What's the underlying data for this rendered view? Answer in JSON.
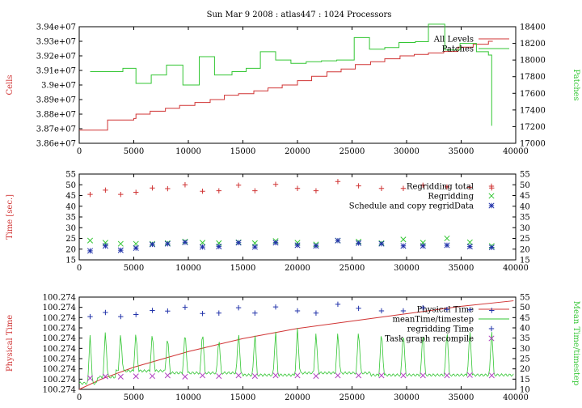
{
  "title": "Sun Mar 9 2008 : atlas447 : 1024 Processors",
  "colors": {
    "red": "#d03434",
    "green": "#33c633",
    "blue": "#2233aa",
    "purple": "#b040c0",
    "axis": "#000000"
  },
  "chart_data": [
    {
      "type": "line",
      "ylabel": "Cells",
      "y2label": "Patches",
      "xlim": [
        0,
        40000
      ],
      "ylim": [
        38600000,
        39400000
      ],
      "y2lim": [
        17000,
        18400
      ],
      "xticks": [
        "0",
        "5000",
        "10000",
        "15000",
        "20000",
        "25000",
        "30000",
        "35000",
        "40000"
      ],
      "yticks": [
        "3.86e+07",
        "3.87e+07",
        "3.88e+07",
        "3.89e+07",
        "3.9e+07",
        "3.91e+07",
        "3.92e+07",
        "3.93e+07",
        "3.94e+07"
      ],
      "y2ticks": [
        "17000",
        "17200",
        "17400",
        "17600",
        "17800",
        "18000",
        "18200",
        "18400"
      ],
      "legend": "top-right",
      "series": [
        {
          "name": "All Levels",
          "axis": "left",
          "step": true,
          "x": [
            0,
            1300,
            2600,
            5000,
            5200,
            6500,
            7900,
            9200,
            10600,
            12000,
            13300,
            14600,
            16000,
            17300,
            18600,
            20000,
            21300,
            22700,
            24000,
            25300,
            26700,
            28000,
            29400,
            30700,
            32000,
            33400,
            34700,
            36100,
            37500,
            37900
          ],
          "y": [
            38690000,
            38690000,
            38760000,
            38770000,
            38800000,
            38820000,
            38840000,
            38860000,
            38880000,
            38900000,
            38930000,
            38940000,
            38960000,
            38980000,
            39000000,
            39030000,
            39060000,
            39090000,
            39110000,
            39140000,
            39160000,
            39180000,
            39200000,
            39210000,
            39220000,
            39230000,
            39260000,
            39280000,
            39300000,
            39300000
          ]
        },
        {
          "name": "Patches",
          "axis": "right",
          "step": true,
          "x": [
            1000,
            2500,
            4000,
            5200,
            6600,
            8000,
            9500,
            11000,
            12400,
            14000,
            15300,
            16600,
            18000,
            19400,
            20800,
            22200,
            23600,
            25200,
            26600,
            28000,
            29300,
            30800,
            32000,
            33500,
            34900,
            36400,
            37500,
            37800
          ],
          "y": [
            17860,
            17860,
            17900,
            17720,
            17820,
            17940,
            17700,
            18040,
            17820,
            17860,
            17900,
            18100,
            18000,
            17960,
            17980,
            17990,
            18000,
            18270,
            18130,
            18150,
            18210,
            18220,
            18430,
            18120,
            18200,
            18100,
            18060,
            17210
          ]
        }
      ]
    },
    {
      "type": "scatter",
      "ylabel": "Time [sec.]",
      "xlim": [
        0,
        40000
      ],
      "ylim": [
        15,
        55
      ],
      "y2lim": [
        15,
        55
      ],
      "xticks": [
        "0",
        "5000",
        "10000",
        "15000",
        "20000",
        "25000",
        "30000",
        "35000",
        "40000"
      ],
      "yticks": [
        "15",
        "20",
        "25",
        "30",
        "35",
        "40",
        "45",
        "50",
        "55"
      ],
      "y2ticks": [
        "15",
        "20",
        "25",
        "30",
        "35",
        "40",
        "45",
        "50",
        "55"
      ],
      "legend": "top-right",
      "series": [
        {
          "name": "Regridding total",
          "marker": "plus",
          "x": [
            1000,
            2400,
            3800,
            5200,
            6700,
            8100,
            9700,
            11300,
            12800,
            14600,
            16100,
            18000,
            20000,
            21700,
            23700,
            25600,
            27700,
            29700,
            31500,
            33700,
            35800,
            37800
          ],
          "y": [
            45.5,
            47.5,
            45.5,
            46.5,
            48.5,
            48.2,
            50,
            47,
            47.2,
            49.8,
            47.2,
            50.2,
            48.3,
            47.2,
            51.5,
            49.5,
            48.3,
            48.3,
            49.8,
            49,
            48.8,
            48.5
          ]
        },
        {
          "name": "Regridding",
          "marker": "cross",
          "x": [
            1000,
            2400,
            3800,
            5200,
            6700,
            8100,
            9700,
            11300,
            12800,
            14600,
            16100,
            18000,
            20000,
            21700,
            23700,
            25600,
            27700,
            29700,
            31500,
            33700,
            35800,
            37800
          ],
          "y": [
            24,
            23,
            22.5,
            22.5,
            22.5,
            22.8,
            23.5,
            23,
            22.8,
            23.2,
            22.8,
            23.8,
            23,
            22.2,
            24,
            23.5,
            22.8,
            24.5,
            23,
            25,
            23.2,
            21.5
          ]
        },
        {
          "name": "Schedule and copy regridData",
          "marker": "star",
          "x": [
            1000,
            2400,
            3800,
            5200,
            6700,
            8100,
            9700,
            11300,
            12800,
            14600,
            16100,
            18000,
            20000,
            21700,
            23700,
            25600,
            27700,
            29700,
            31500,
            33700,
            35800,
            37800
          ],
          "y": [
            19.2,
            21.5,
            19.5,
            20.5,
            22.2,
            22.5,
            23.2,
            21,
            21.2,
            23,
            21,
            23,
            21.8,
            21.5,
            24,
            22.8,
            22.5,
            21.5,
            21.5,
            21.8,
            21.2,
            20.8
          ]
        }
      ]
    },
    {
      "type": "line",
      "ylabel": "Physical Time",
      "y2label": "Mean Time/timestep",
      "xlim": [
        0,
        40000
      ],
      "y2lim": [
        10,
        55
      ],
      "xticks": [
        "0",
        "5000",
        "10000",
        "15000",
        "20000",
        "25000",
        "30000",
        "35000",
        "40000"
      ],
      "yticks": [
        "100.274",
        "100.274",
        "100.274",
        "100.274",
        "100.274",
        "100.274",
        "100.274",
        "100.274",
        "100.274",
        "100.274"
      ],
      "y2ticks": [
        "10",
        "15",
        "20",
        "25",
        "30",
        "35",
        "40",
        "45",
        "50",
        "55"
      ],
      "legend": "top-right",
      "series": [
        {
          "name": "Physical Time",
          "axis": "left",
          "x": [
            0,
            2000,
            5000,
            10000,
            15000,
            20000,
            25000,
            30000,
            35000,
            39800
          ],
          "y": [
            0.0,
            0.11,
            0.24,
            0.41,
            0.55,
            0.66,
            0.74,
            0.82,
            0.9,
            0.96
          ]
        },
        {
          "name": "meanTime/timestep",
          "axis": "right",
          "baseline": [
            13,
            16,
            19,
            19,
            19,
            18,
            18,
            18,
            18,
            17,
            17,
            17,
            18,
            18,
            18,
            18,
            17,
            17,
            17,
            17,
            17,
            17,
            17,
            17
          ],
          "spikes_x": [
            1000,
            2400,
            3800,
            5200,
            6700,
            8100,
            9700,
            11300,
            12800,
            14600,
            16100,
            18000,
            20000,
            21700,
            23700,
            25600,
            27700,
            29700,
            31500,
            33700,
            35800,
            37800
          ],
          "spikes_y": [
            37,
            39,
            38,
            39,
            39,
            37,
            40,
            40,
            36,
            39,
            38,
            39,
            40,
            38,
            39,
            40,
            40,
            40,
            40,
            40,
            40,
            39
          ]
        },
        {
          "name": "regridding Time",
          "axis": "right",
          "marker": "plus",
          "x": [
            1000,
            2400,
            3800,
            5200,
            6700,
            8100,
            9700,
            11300,
            12800,
            14600,
            16100,
            18000,
            20000,
            21700,
            23700,
            25600,
            27700,
            29700,
            31500,
            33700,
            35800,
            37800
          ],
          "y": [
            45.5,
            47.5,
            45.5,
            46.5,
            48.5,
            48.2,
            50,
            47,
            47.2,
            49.8,
            47.2,
            50.2,
            48.3,
            47.2,
            51.5,
            49.5,
            48.3,
            48.3,
            49.8,
            49,
            48.8,
            48.5
          ]
        },
        {
          "name": "Task graph recompile",
          "axis": "right",
          "marker": "cross",
          "x": [
            1000,
            2400,
            3800,
            5200,
            6700,
            8100,
            9700,
            11300,
            12800,
            14600,
            16100,
            18000,
            20000,
            21700,
            23700,
            25600,
            27700,
            29700,
            31500,
            33700,
            35800,
            37800
          ],
          "y": [
            15.5,
            16.3,
            16.2,
            16.4,
            16.5,
            16.8,
            16.2,
            16.8,
            16.5,
            16.8,
            16.5,
            16.8,
            16.8,
            16.5,
            16.8,
            16.8,
            16.8,
            16.8,
            16.8,
            16.8,
            17,
            16.8
          ]
        }
      ]
    }
  ]
}
